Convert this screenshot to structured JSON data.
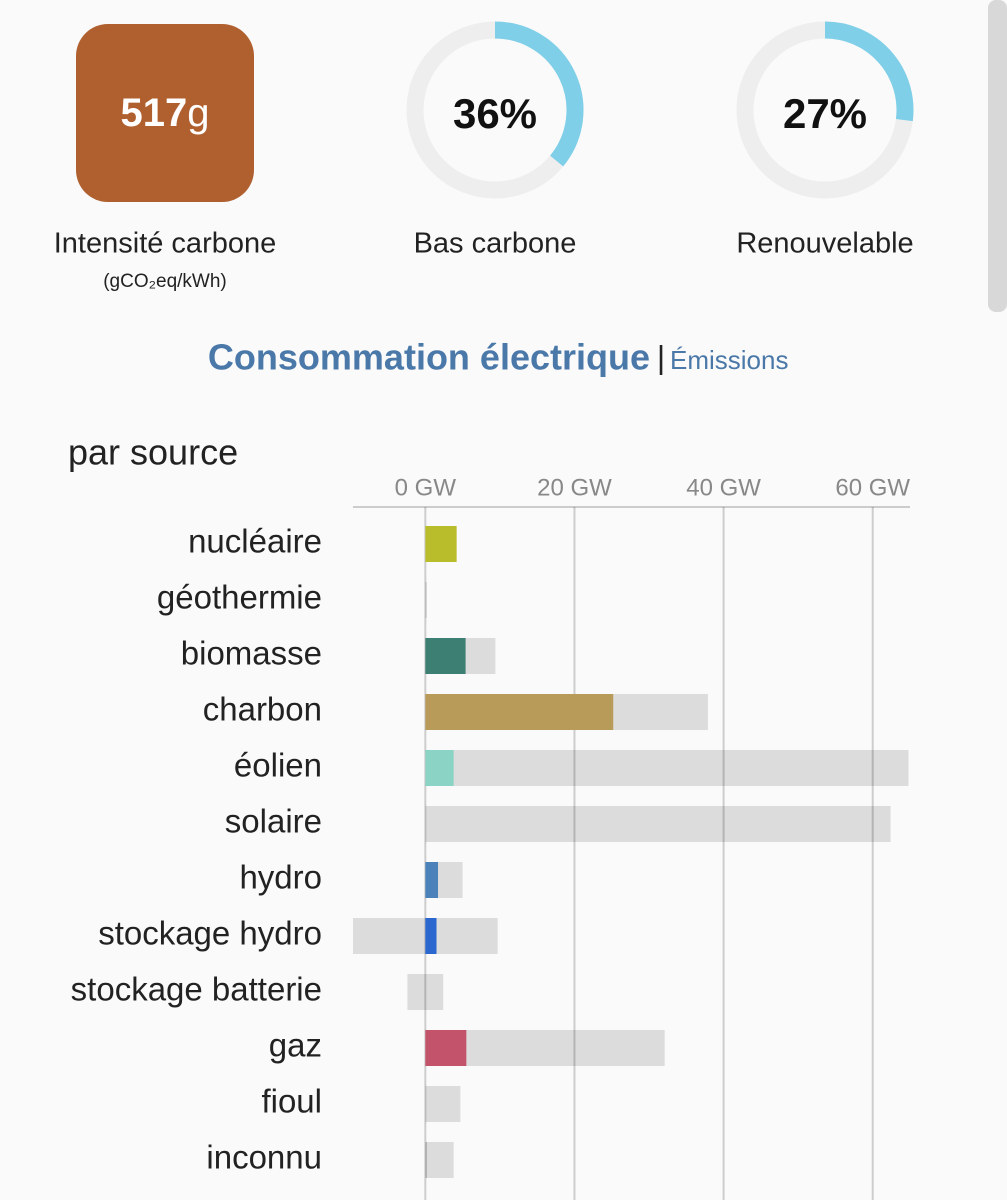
{
  "carbon_intensity": {
    "value": 517,
    "unit": "g",
    "label": "Intensité carbone",
    "sublabel": "(gCO₂eq/kWh)",
    "color": "#b0602f"
  },
  "gauges": [
    {
      "value": 36,
      "value_label": "36%",
      "label": "Bas carbone"
    },
    {
      "value": 27,
      "value_label": "27%",
      "label": "Renouvelable"
    }
  ],
  "tabs": {
    "active": "Consommation électrique",
    "separator": "|",
    "other": "Émissions"
  },
  "chart_data": {
    "type": "bar",
    "orientation": "horizontal",
    "title": "par source",
    "categories": [
      "nucléaire",
      "géothermie",
      "biomasse",
      "charbon",
      "éolien",
      "solaire",
      "hydro",
      "stockage hydro",
      "stockage batterie",
      "gaz",
      "fioul",
      "inconnu"
    ],
    "values": [
      4.2,
      0,
      5.4,
      25.2,
      3.8,
      0,
      1.7,
      1.5,
      0,
      5.5,
      0,
      0.2
    ],
    "capacity": [
      null,
      0.1,
      9.4,
      37.9,
      64.8,
      62.4,
      5.0,
      9.7,
      2.4,
      32.1,
      4.7,
      3.8
    ],
    "capacity_min": [
      null,
      null,
      null,
      null,
      null,
      null,
      null,
      -9.7,
      -2.4,
      null,
      null,
      null
    ],
    "colors": [
      "#b9bd2c",
      "#999999",
      "#3d7f72",
      "#b99b59",
      "#8bd3c4",
      "#f2c94c",
      "#4a82b9",
      "#2a68d0",
      "#7b4fb8",
      "#c2536b",
      "#8a6a5a",
      "#aaaaaa"
    ],
    "capacity_color": "#dcdcdc",
    "xlim": [
      -9.7,
      65
    ],
    "xticks": [
      {
        "value": 0,
        "label": "0 GW"
      },
      {
        "value": 20,
        "label": "20 GW"
      },
      {
        "value": 40,
        "label": "40 GW"
      },
      {
        "value": 60,
        "label": "60 GW"
      }
    ],
    "grid": true
  }
}
